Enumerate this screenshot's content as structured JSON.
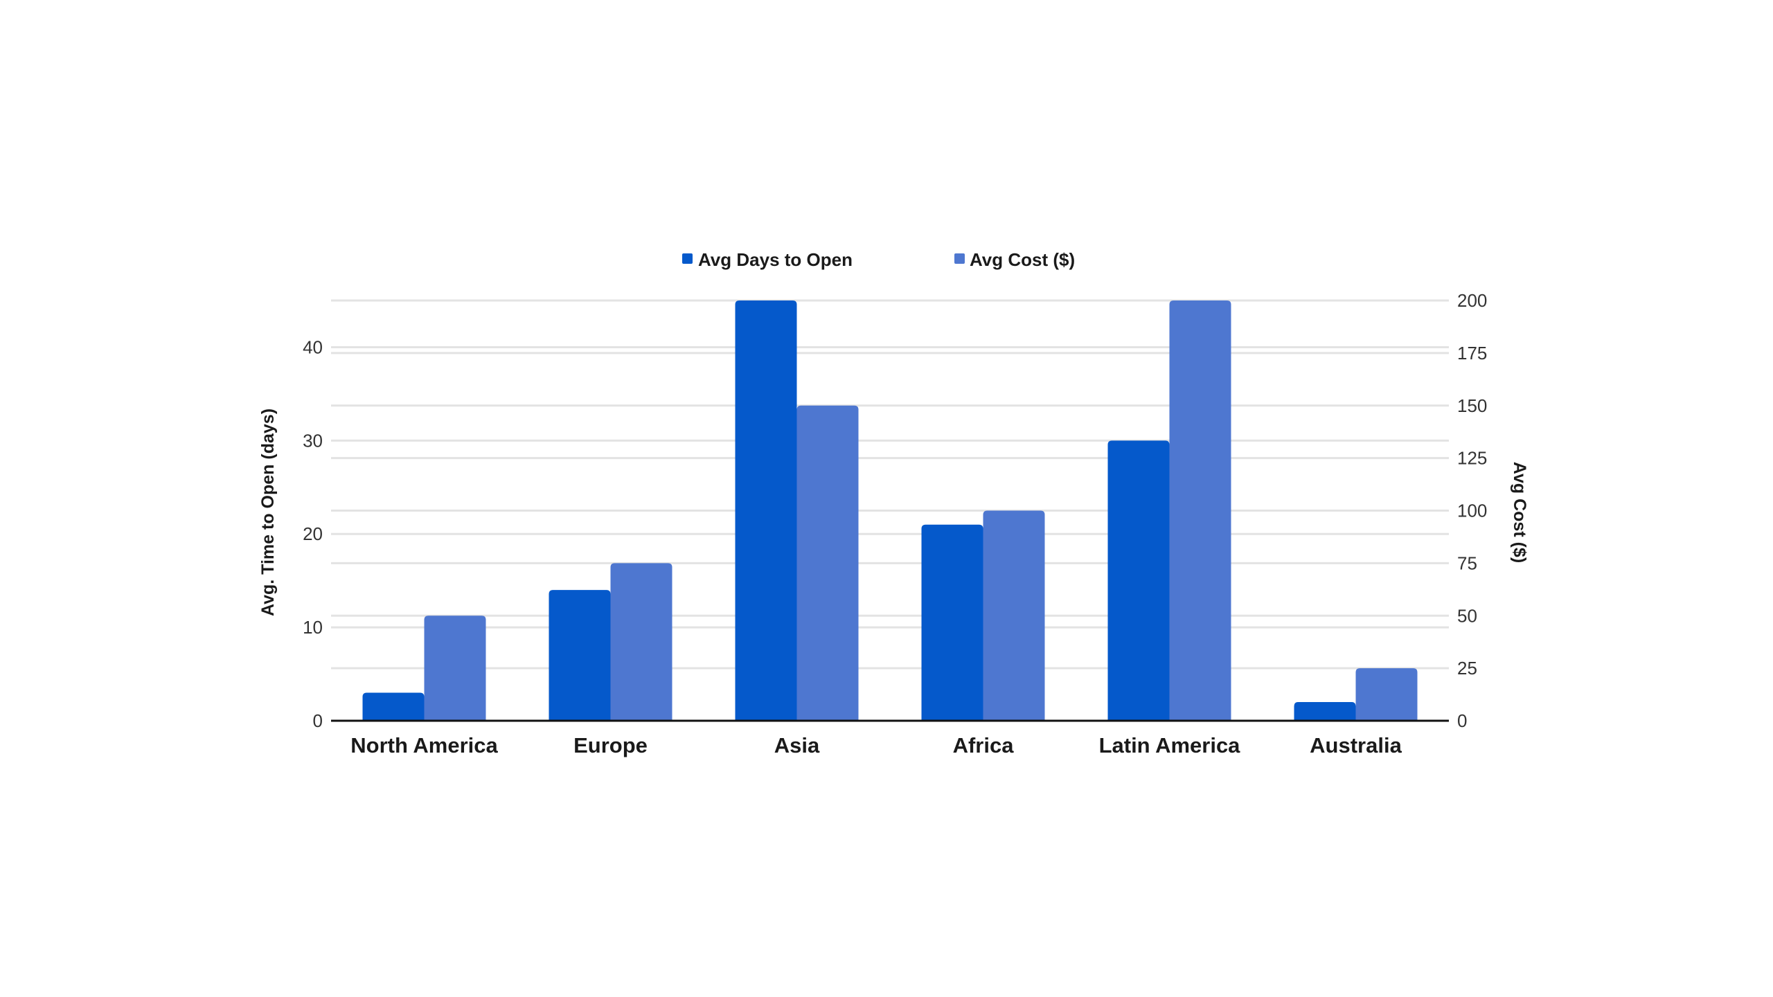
{
  "chart_data": {
    "type": "bar",
    "title": "",
    "categories": [
      "North America",
      "Europe",
      "Asia",
      "Africa",
      "Latin America",
      "Australia"
    ],
    "series": [
      {
        "name": "Avg Days to Open",
        "axis": "left",
        "color": "#0559CB",
        "values": [
          3,
          14,
          45,
          21,
          30,
          2
        ]
      },
      {
        "name": "Avg Cost ($)",
        "axis": "right",
        "color": "#4E77D0",
        "values": [
          50,
          75,
          150,
          100,
          200,
          25
        ]
      }
    ],
    "ylabel": "Avg. Time to Open (days)",
    "ylabel_right": "Avg Cost ($)",
    "ylim": [
      0,
      45
    ],
    "yticks": [
      0,
      10,
      20,
      30,
      40
    ],
    "ylim_right": [
      0,
      200
    ],
    "yticks_right": [
      0,
      25,
      50,
      75,
      100,
      125,
      150,
      175,
      200
    ],
    "grid": true,
    "legend": "top-center"
  },
  "colors": {
    "gridline": "#E3E3E3",
    "baseline": "#111111",
    "background": "#FFFFFF"
  }
}
